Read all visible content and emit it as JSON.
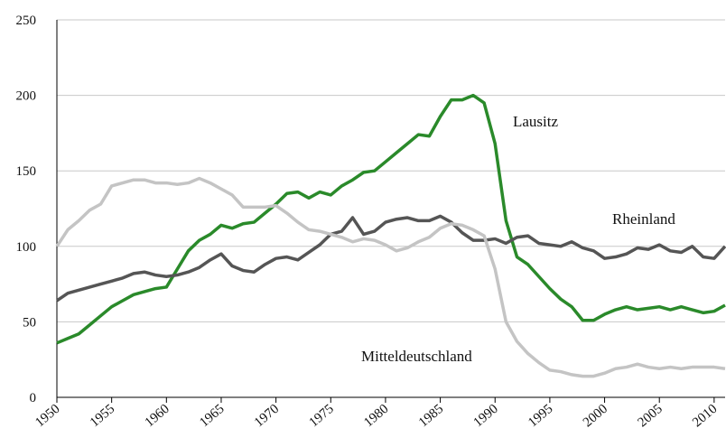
{
  "chart_data": {
    "type": "line",
    "x": [
      1950,
      1951,
      1952,
      1953,
      1954,
      1955,
      1956,
      1957,
      1958,
      1959,
      1960,
      1961,
      1962,
      1963,
      1964,
      1965,
      1966,
      1967,
      1968,
      1969,
      1970,
      1971,
      1972,
      1973,
      1974,
      1975,
      1976,
      1977,
      1978,
      1979,
      1980,
      1981,
      1982,
      1983,
      1984,
      1985,
      1986,
      1987,
      1988,
      1989,
      1990,
      1991,
      1992,
      1993,
      1994,
      1995,
      1996,
      1997,
      1998,
      1999,
      2000,
      2001,
      2002,
      2003,
      2004,
      2005,
      2006,
      2007,
      2008,
      2009,
      2010,
      2011
    ],
    "series": [
      {
        "name": "Lausitz",
        "color": "#2a8a2a",
        "values": [
          36,
          39,
          42,
          48,
          54,
          60,
          64,
          68,
          70,
          72,
          73,
          85,
          97,
          104,
          108,
          114,
          112,
          115,
          116,
          122,
          128,
          135,
          136,
          132,
          136,
          134,
          140,
          144,
          149,
          150,
          156,
          162,
          168,
          174,
          173,
          186,
          197,
          197,
          200,
          195,
          168,
          117,
          93,
          88,
          80,
          72,
          65,
          60,
          51,
          51,
          55,
          58,
          60,
          58,
          59,
          60,
          58,
          60,
          58,
          56,
          57,
          61
        ]
      },
      {
        "name": "Rheinland",
        "color": "#555555",
        "values": [
          64,
          69,
          71,
          73,
          75,
          77,
          79,
          82,
          83,
          81,
          80,
          81,
          83,
          86,
          91,
          95,
          87,
          84,
          83,
          88,
          92,
          93,
          91,
          96,
          101,
          108,
          110,
          119,
          108,
          110,
          116,
          118,
          119,
          117,
          117,
          120,
          116,
          109,
          104,
          104,
          105,
          102,
          106,
          107,
          102,
          101,
          100,
          103,
          99,
          97,
          92,
          93,
          95,
          99,
          98,
          101,
          97,
          96,
          100,
          93,
          92,
          100
        ]
      },
      {
        "name": "Mitteldeutschland",
        "color": "#c4c4c4",
        "values": [
          100,
          111,
          117,
          124,
          128,
          140,
          142,
          144,
          144,
          142,
          142,
          141,
          142,
          145,
          142,
          138,
          134,
          126,
          126,
          126,
          127,
          122,
          116,
          111,
          110,
          108,
          106,
          103,
          105,
          104,
          101,
          97,
          99,
          103,
          106,
          112,
          115,
          114,
          111,
          107,
          85,
          50,
          37,
          29,
          23,
          18,
          17,
          15,
          14,
          14,
          16,
          19,
          20,
          22,
          20,
          19,
          20,
          19,
          20,
          20,
          20,
          19
        ]
      }
    ],
    "annotations": [
      "Lausitz",
      "Rheinland",
      "Mitteldeutschland"
    ],
    "xlim": [
      1950,
      2011
    ],
    "xticks": [
      1950,
      1955,
      1960,
      1965,
      1970,
      1975,
      1980,
      1985,
      1990,
      1995,
      2000,
      2005,
      2010
    ],
    "ylim": [
      0,
      250
    ],
    "yticks": [
      0,
      50,
      100,
      150,
      200,
      250
    ],
    "grid": true
  }
}
